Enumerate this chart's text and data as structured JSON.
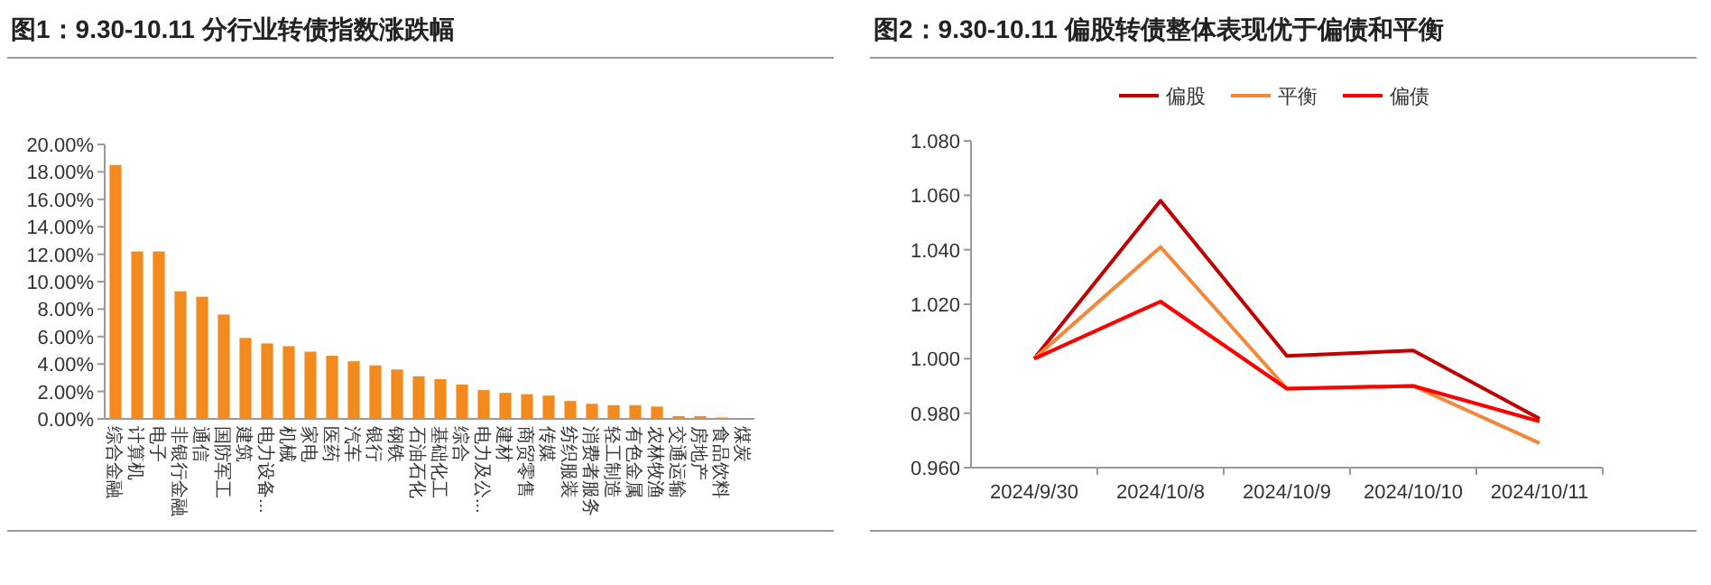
{
  "chart_data": [
    {
      "type": "bar",
      "title": "图1：9.30-10.11 分行业转债指数涨跌幅",
      "categories": [
        "综合金融",
        "计算机",
        "电子",
        "非银行金融",
        "通信",
        "国防军工",
        "建筑",
        "电力设备...",
        "机械",
        "家电",
        "医药",
        "汽车",
        "银行",
        "钢铁",
        "石油石化",
        "基础化工",
        "综合",
        "电力及公...",
        "建材",
        "商贸零售",
        "传媒",
        "纺织服装",
        "消费者服务",
        "轻工制造",
        "有色金属",
        "农林牧渔",
        "交通运输",
        "房地产",
        "食品饮料",
        "煤炭"
      ],
      "values": [
        18.5,
        12.2,
        12.2,
        9.3,
        8.9,
        7.6,
        5.9,
        5.5,
        5.3,
        4.9,
        4.6,
        4.2,
        3.9,
        3.6,
        3.1,
        2.9,
        2.5,
        2.1,
        1.9,
        1.8,
        1.7,
        1.3,
        1.1,
        1.0,
        1.0,
        0.9,
        0.2,
        0.2,
        0.1,
        0.0
      ],
      "color": "#f28a1e",
      "ylim": [
        0,
        20
      ],
      "yticks": [
        {
          "value": 0,
          "label": "0.00%"
        },
        {
          "value": 2,
          "label": "2.00%"
        },
        {
          "value": 4,
          "label": "4.00%"
        },
        {
          "value": 6,
          "label": "6.00%"
        },
        {
          "value": 8,
          "label": "8.00%"
        },
        {
          "value": 10,
          "label": "10.00%"
        },
        {
          "value": 12,
          "label": "12.00%"
        },
        {
          "value": 14,
          "label": "14.00%"
        },
        {
          "value": 16,
          "label": "16.00%"
        },
        {
          "value": 18,
          "label": "18.00%"
        },
        {
          "value": 20,
          "label": "20.00%"
        }
      ]
    },
    {
      "type": "line",
      "title": "图2：9.30-10.11 偏股转债整体表现优于偏债和平衡",
      "categories": [
        "2024/9/30",
        "2024/10/8",
        "2024/10/9",
        "2024/10/10",
        "2024/10/11"
      ],
      "series": [
        {
          "name": "偏股",
          "color": "#c00000",
          "values": [
            1.0,
            1.058,
            1.001,
            1.003,
            0.978
          ]
        },
        {
          "name": "平衡",
          "color": "#f4873a",
          "values": [
            1.0,
            1.041,
            0.989,
            0.99,
            0.969
          ]
        },
        {
          "name": "偏债",
          "color": "#ff0000",
          "values": [
            1.0,
            1.021,
            0.989,
            0.99,
            0.977
          ]
        }
      ],
      "ylim": [
        0.96,
        1.08
      ],
      "yticks": [
        {
          "value": 0.96,
          "label": "0.960"
        },
        {
          "value": 0.98,
          "label": "0.980"
        },
        {
          "value": 1.0,
          "label": "1.000"
        },
        {
          "value": 1.02,
          "label": "1.020"
        },
        {
          "value": 1.04,
          "label": "1.040"
        },
        {
          "value": 1.06,
          "label": "1.060"
        },
        {
          "value": 1.08,
          "label": "1.080"
        }
      ],
      "legend": "top"
    }
  ]
}
